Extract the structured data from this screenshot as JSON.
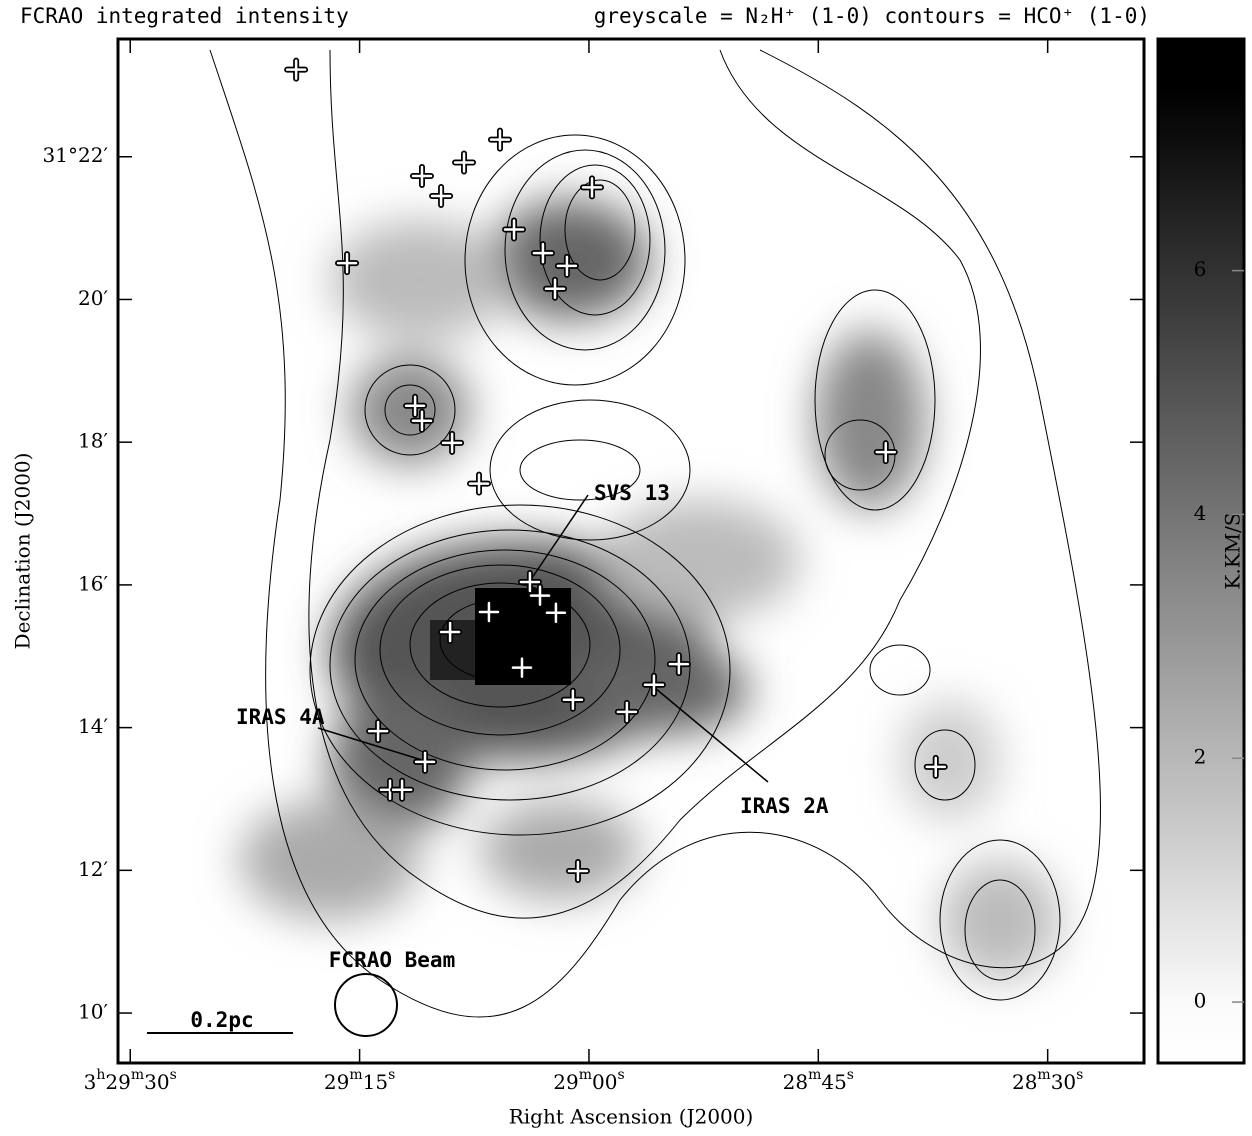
{
  "chart_data": {
    "type": "scatter",
    "title": "FCRAO integrated intensity",
    "subtitle": "greyscale = N₂H⁺ (1-0)  contours = HCO⁺ (1-0)",
    "x_label": "Right Ascension (J2000)",
    "y_label": "Declination (J2000)",
    "colorbar_label": "K.KM/S",
    "xlim": [
      90.8,
      23.7
    ],
    "xticks": [
      {
        "value": 90,
        "label": "3h29m30s"
      },
      {
        "value": 75,
        "label": "29m15s"
      },
      {
        "value": 60,
        "label": "29m00s"
      },
      {
        "value": 45,
        "label": "28m45s"
      },
      {
        "value": 30,
        "label": "28m30s"
      }
    ],
    "ylim": [
      9.3,
      23.65
    ],
    "yticks": [
      {
        "value": 22,
        "label": "31°22′"
      },
      {
        "value": 20,
        "label": "20′"
      },
      {
        "value": 18,
        "label": "18′"
      },
      {
        "value": 16,
        "label": "16′"
      },
      {
        "value": 14,
        "label": "14′"
      },
      {
        "value": 12,
        "label": "12′"
      },
      {
        "value": 10,
        "label": "10′"
      }
    ],
    "clim": [
      -0.5,
      7.9
    ],
    "cticks": [
      0,
      2,
      4,
      6
    ],
    "x": [
      79.15,
      65.82,
      68.17,
      70.92,
      69.67,
      59.8,
      64.9,
      63.01,
      61.44,
      62.22,
      75.82,
      71.37,
      70.92,
      68.95,
      67.19,
      40.59,
      63.86,
      63.2,
      66.54,
      62.16,
      69.08,
      64.38,
      54.12,
      55.75,
      61.05,
      57.52,
      73.79,
      70.72,
      73.01,
      72.22,
      60.72,
      37.32
    ],
    "y": [
      23.22,
      22.24,
      21.92,
      21.73,
      21.45,
      21.57,
      20.98,
      20.65,
      20.47,
      20.15,
      20.51,
      18.51,
      18.3,
      17.99,
      17.42,
      17.86,
      16.04,
      15.85,
      15.62,
      15.61,
      15.34,
      14.84,
      14.89,
      14.6,
      14.39,
      14.22,
      13.95,
      13.52,
      13.13,
      13.13,
      11.99,
      13.45
    ],
    "color": "#ffffff",
    "annotations": [
      "SVS 13",
      "IRAS 4A",
      "IRAS 2A",
      "FCRAO Beam",
      "0.2pc"
    ]
  }
}
